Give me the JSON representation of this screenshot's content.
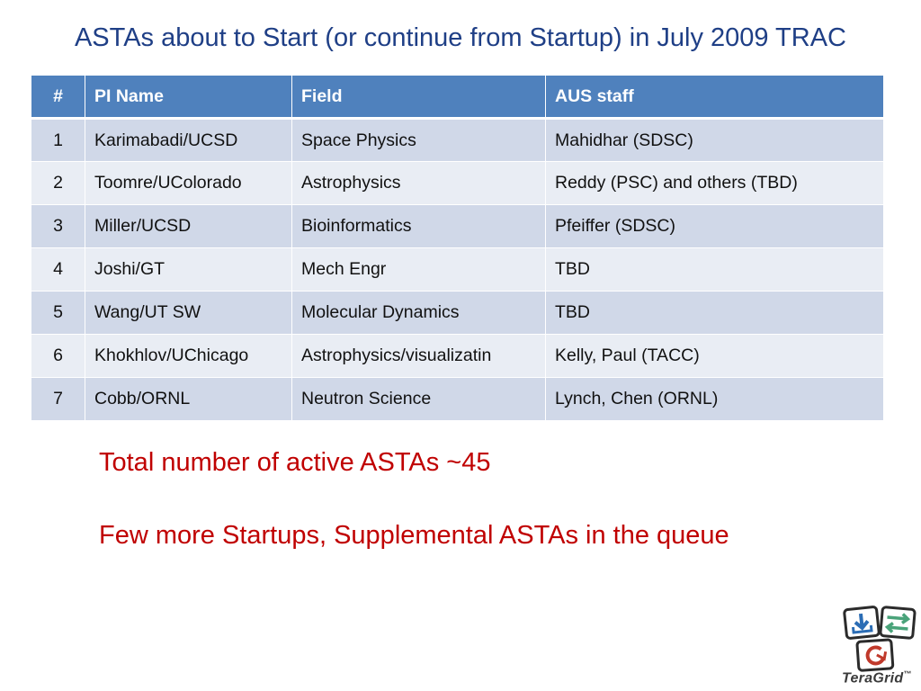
{
  "slide": {
    "title": "ASTAs about to Start (or continue from Startup) in July 2009 TRAC"
  },
  "table": {
    "headers": [
      "#",
      "PI Name",
      "Field",
      "AUS staff"
    ],
    "rows": [
      {
        "num": "1",
        "pi": "Karimabadi/UCSD",
        "field": "Space Physics",
        "staff": "Mahidhar (SDSC)"
      },
      {
        "num": "2",
        "pi": "Toomre/UColorado",
        "field": "Astrophysics",
        "staff": "Reddy (PSC) and others (TBD)"
      },
      {
        "num": "3",
        "pi": "Miller/UCSD",
        "field": "Bioinformatics",
        "staff": "Pfeiffer (SDSC)"
      },
      {
        "num": "4",
        "pi": "Joshi/GT",
        "field": "Mech Engr",
        "staff": "TBD"
      },
      {
        "num": "5",
        "pi": "Wang/UT SW",
        "field": "Molecular Dynamics",
        "staff": "TBD"
      },
      {
        "num": "6",
        "pi": "Khokhlov/UChicago",
        "field": "Astrophysics/visualizatin",
        "staff": "Kelly, Paul (TACC)"
      },
      {
        "num": "7",
        "pi": "Cobb/ORNL",
        "field": "Neutron Science",
        "staff": "Lynch, Chen (ORNL)"
      }
    ]
  },
  "notes": {
    "total": "Total number of active ASTAs ~45",
    "queue": "Few more Startups, Supplemental ASTAs in the queue"
  },
  "logo": {
    "word_a": "Tera",
    "word_b": "Grid",
    "mark": "™",
    "icon": "teragrid-logo-icon"
  },
  "colors": {
    "title": "#1f3f86",
    "header_bg": "#4f81bd",
    "row_odd": "#d0d8e8",
    "row_even": "#e9edf4",
    "note": "#c00000"
  }
}
